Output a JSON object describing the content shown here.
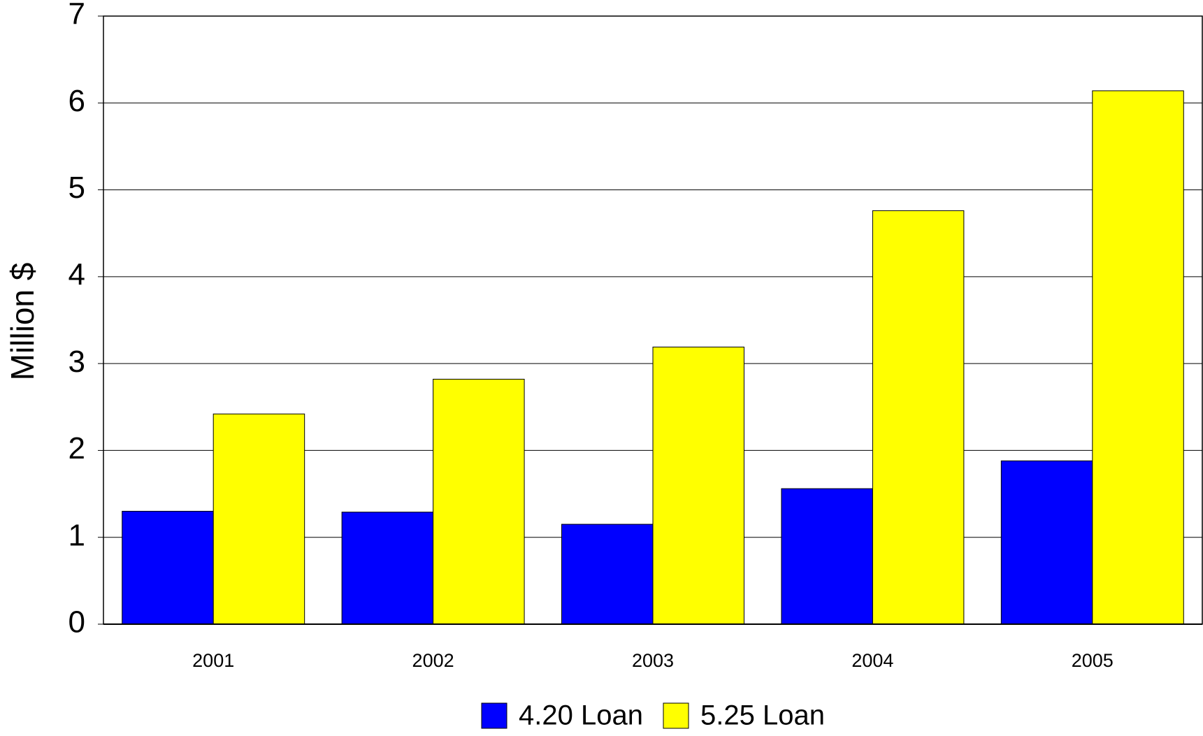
{
  "chart_data": {
    "type": "bar",
    "y_label": "Million $",
    "categories": [
      "2001",
      "2002",
      "2003",
      "2004",
      "2005"
    ],
    "series": [
      {
        "name": "4.20 Loan",
        "color": "#0000ff",
        "values": [
          1.3,
          1.29,
          1.15,
          1.56,
          1.88
        ]
      },
      {
        "name": "5.25 Loan",
        "color": "#ffff00",
        "values": [
          2.42,
          2.82,
          3.19,
          4.76,
          6.14
        ]
      }
    ],
    "ylim": [
      0,
      7
    ],
    "yticks": [
      0,
      1,
      2,
      3,
      4,
      5,
      6,
      7
    ],
    "grid": true,
    "legend": "bottom"
  }
}
